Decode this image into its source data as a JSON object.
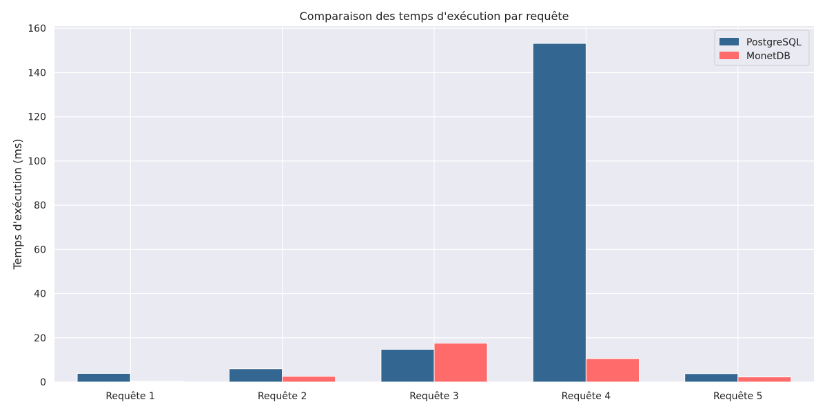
{
  "chart_data": {
    "type": "bar",
    "title": "Comparaison des temps d'exécution par requête",
    "xlabel": "",
    "ylabel": "Temps d'exécution (ms)",
    "categories": [
      "Requête 1",
      "Requête 2",
      "Requête 3",
      "Requête 4",
      "Requête 5"
    ],
    "series": [
      {
        "name": "PostgreSQL",
        "color": "#336791",
        "values": [
          3.9,
          6.0,
          14.8,
          153.2,
          3.8
        ]
      },
      {
        "name": "MonetDB",
        "color": "#ff6b6b",
        "values": [
          0.3,
          2.6,
          17.6,
          10.6,
          2.3
        ]
      }
    ],
    "ylim": [
      0,
      161
    ],
    "yticks": [
      0,
      20,
      40,
      60,
      80,
      100,
      120,
      140,
      160
    ],
    "grid": true,
    "legend": "top-right",
    "background": "#eaeaf2",
    "grid_color": "#ffffff"
  }
}
